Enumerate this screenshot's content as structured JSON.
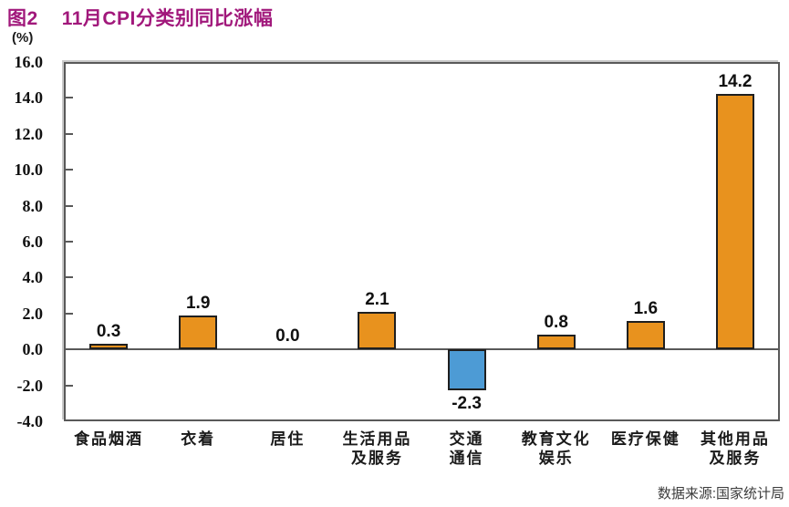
{
  "header": {
    "figure_label": "图2",
    "title": "11月CPI分类别同比涨幅"
  },
  "footer": {
    "source": "数据来源:国家统计局"
  },
  "chart_data": {
    "type": "bar",
    "title": "11月CPI分类别同比涨幅",
    "unit_label": "(%)",
    "xlabel": "",
    "ylabel": "(%)",
    "categories": [
      "食品烟酒",
      "衣着",
      "居住",
      "生活用品\n及服务",
      "交通\n通信",
      "教育文化\n娱乐",
      "医疗保健",
      "其他用品\n及服务"
    ],
    "values": [
      0.3,
      1.9,
      0.0,
      2.1,
      -2.3,
      0.8,
      1.6,
      14.2
    ],
    "value_labels": [
      "0.3",
      "1.9",
      "0.0",
      "2.1",
      "-2.3",
      "0.8",
      "1.6",
      "14.2"
    ],
    "ylim": [
      -4.0,
      16.0
    ],
    "ytick_interval": 2.0,
    "yticks": [
      "16.0",
      "14.0",
      "12.0",
      "10.0",
      "8.0",
      "6.0",
      "4.0",
      "2.0",
      "0.0",
      "-2.0",
      "-4.0"
    ],
    "grid": false,
    "legend": false,
    "colors": {
      "positive_bar": "#E8921E",
      "negative_bar": "#4D9BD5",
      "bar_outline": "#1F1F1F",
      "axis_frame": "#595959",
      "title_accent": "#A1187B",
      "source_text": "#3C3C3C"
    }
  }
}
